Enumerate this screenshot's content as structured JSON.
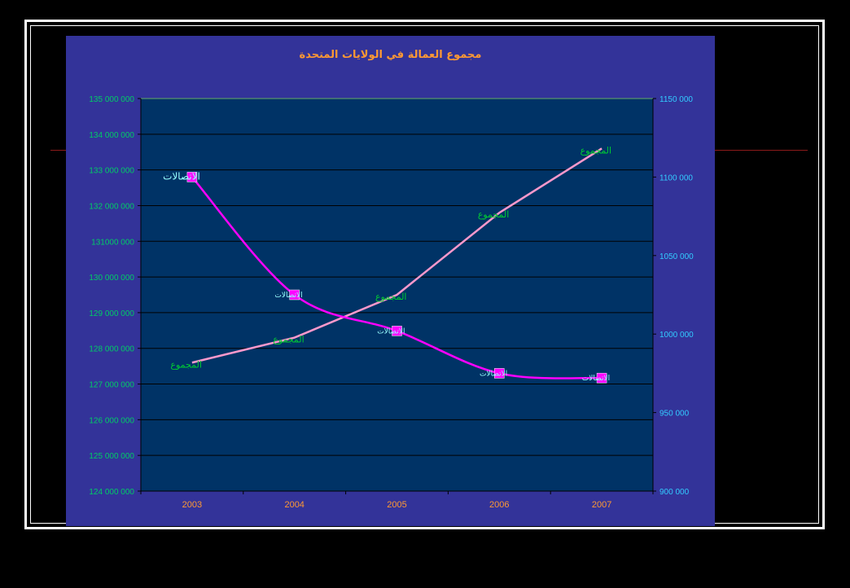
{
  "colors": {
    "page_background": "#000000",
    "chart_area_background": "#333399",
    "plot_background": "#003366",
    "title_color": "#ff9933",
    "left_axis_label_color": "#00cc66",
    "right_axis_label_color": "#33ccff",
    "x_axis_label_color": "#ff9933",
    "total_series_color": "#ff99cc",
    "telecom_series_color": "#ff00ff",
    "total_data_label_color": "#00cc33",
    "telecom_data_label_color": "#99ffff",
    "frame_color": "#ffffff",
    "decor_line_color": "#8b1a1a"
  },
  "chart_data": {
    "type": "line",
    "title": "مجموع العمالة في الولايات المتحدة",
    "xlabel": "",
    "ylabel": "",
    "categories": [
      "2003",
      "2004",
      "2005",
      "2006",
      "2007"
    ],
    "y_left": {
      "min": 124000000,
      "max": 135000000,
      "step": 1000000,
      "tick_labels": [
        "124 000 000",
        "125 000 000",
        "126 000 000",
        "127 000 000",
        "128 000 000",
        "129 000 000",
        "130 000 000",
        "131000 000",
        "132 000 000",
        "133 000 000",
        "134 000 000",
        "135 000 000"
      ]
    },
    "y_right": {
      "min": 900000,
      "max": 1150000,
      "step": 50000,
      "tick_labels": [
        "900 000",
        "950 000",
        "1000 000",
        "1050 000",
        "1100 000",
        "1150 000"
      ]
    },
    "grid": true,
    "legend": "none",
    "series": [
      {
        "axis": "left",
        "smooth": false,
        "marker": "none",
        "values": [
          127600000,
          128300000,
          129500000,
          131800000,
          133600000
        ],
        "data_labels": [
          "المجموع",
          "المجموع",
          "المجموع",
          "المجموع",
          "المجموع"
        ]
      },
      {
        "axis": "right",
        "smooth": true,
        "marker": "square",
        "values": [
          1100000,
          1025000,
          1002000,
          975000,
          972000
        ],
        "data_labels": [
          "الاتصالات",
          "الاتصالات",
          "الاتصالات",
          "الاتصالات",
          "الاتصالات"
        ]
      }
    ]
  }
}
